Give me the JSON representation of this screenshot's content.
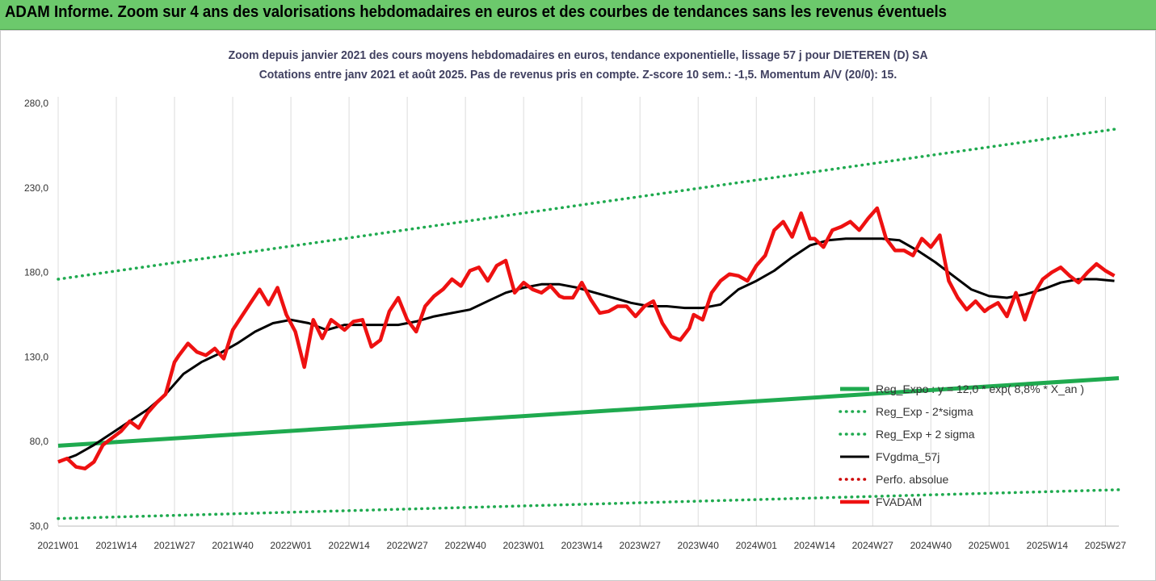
{
  "header": {
    "banner_title": "ADAM Informe. Zoom sur 4 ans des valorisations hebdomadaires en euros et des courbes de tendances sans les revenus éventuels"
  },
  "chart_data": {
    "type": "line",
    "title": "Zoom depuis janvier 2021 des cours moyens hebdomadaires en euros, tendance exponentielle, lissage 57 j pour DIETEREN (D) SA",
    "subtitle": "Cotations entre janv 2021 et août 2025.  Pas de revenus pris en compte. Z-score 10 sem.: -1,5. Momentum A/V (20/0): 15.",
    "x_ticks": [
      "2021W01",
      "2021W14",
      "2021W27",
      "2021W40",
      "2022W01",
      "2022W14",
      "2022W27",
      "2022W40",
      "2023W01",
      "2023W14",
      "2023W27",
      "2023W40",
      "2024W01",
      "2024W14",
      "2024W27",
      "2024W40",
      "2025W01",
      "2025W14",
      "2025W27"
    ],
    "x_tick_weeks": [
      0,
      13,
      26,
      39,
      52,
      65,
      78,
      91,
      104,
      117,
      130,
      143,
      156,
      169,
      182,
      195,
      208,
      221,
      234
    ],
    "y_ticks": [
      "30,0",
      "80,0",
      "130,0",
      "180,0",
      "230,0",
      "280,0"
    ],
    "ylim": [
      30,
      280
    ],
    "xlim_weeks": [
      0,
      237
    ],
    "grid": "vertical",
    "legend_position": "bottom-right",
    "series": [
      {
        "name": "Reg_Expo : y = 12,0 * exp( 8,8% * X_an )",
        "style": "solid",
        "color": "#1faa4f",
        "x": [
          0,
          237
        ],
        "y": [
          77.5,
          117.5
        ]
      },
      {
        "name": "Reg_Exp - 2*sigma",
        "style": "dotted",
        "color": "#1faa4f",
        "x": [
          0,
          237
        ],
        "y": [
          34.5,
          51.5
        ]
      },
      {
        "name": "Reg_Exp + 2 sigma",
        "style": "dotted",
        "color": "#1faa4f",
        "x": [
          0,
          237
        ],
        "y": [
          176.0,
          265.0
        ]
      },
      {
        "name": "FVgdma_57j",
        "style": "solid",
        "color": "#000000",
        "x": [
          0,
          4,
          8,
          12,
          16,
          20,
          24,
          28,
          32,
          36,
          40,
          44,
          48,
          52,
          56,
          60,
          64,
          68,
          72,
          76,
          80,
          84,
          88,
          92,
          96,
          100,
          104,
          108,
          112,
          116,
          120,
          124,
          128,
          132,
          136,
          140,
          144,
          148,
          152,
          156,
          160,
          164,
          168,
          172,
          176,
          180,
          184,
          188,
          192,
          196,
          200,
          204,
          208,
          212,
          216,
          220,
          224,
          228,
          232,
          236
        ],
        "y": [
          68,
          72,
          78,
          85,
          92,
          99,
          108,
          120,
          127,
          132,
          138,
          145,
          150,
          152,
          150,
          146,
          149,
          149,
          149,
          149,
          151,
          154,
          156,
          158,
          163,
          168,
          171,
          173,
          173,
          171,
          168,
          165,
          162,
          160,
          160,
          159,
          159,
          161,
          170,
          175,
          181,
          189,
          196,
          199,
          200,
          200,
          200,
          199,
          193,
          186,
          178,
          170,
          166,
          165,
          167,
          170,
          174,
          176,
          176,
          175
        ]
      },
      {
        "name": "Perfo. absolue",
        "style": "dotted",
        "color": "#cc0000",
        "x": [],
        "y": []
      },
      {
        "name": "FVADAM",
        "style": "solid",
        "color": "#ee1111",
        "x": [
          0,
          2,
          4,
          6,
          8,
          10,
          12,
          14,
          16,
          18,
          20,
          22,
          24,
          26,
          27,
          29,
          31,
          33,
          35,
          37,
          39,
          41,
          43,
          45,
          47,
          49,
          51,
          53,
          55,
          57,
          59,
          61,
          62,
          64,
          66,
          68,
          70,
          72,
          74,
          76,
          78,
          80,
          82,
          84,
          86,
          88,
          90,
          92,
          94,
          96,
          98,
          100,
          102,
          104,
          106,
          108,
          110,
          112,
          113,
          115,
          117,
          119,
          121,
          123,
          125,
          127,
          129,
          131,
          133,
          135,
          137,
          139,
          141,
          142,
          144,
          146,
          148,
          150,
          152,
          154,
          156,
          158,
          160,
          162,
          164,
          166,
          168,
          169,
          171,
          173,
          175,
          177,
          179,
          181,
          183,
          185,
          187,
          189,
          191,
          193,
          195,
          197,
          199,
          201,
          203,
          205,
          207,
          208,
          210,
          212,
          214,
          216,
          218,
          220,
          222,
          224,
          226,
          228,
          230,
          232,
          234,
          236
        ],
        "y": [
          68,
          70,
          65,
          64,
          68,
          78,
          82,
          86,
          92,
          88,
          97,
          103,
          108,
          127,
          131,
          138,
          133,
          131,
          135,
          129,
          146,
          154,
          162,
          170,
          161,
          171,
          155,
          145,
          124,
          152,
          141,
          152,
          150,
          146,
          151,
          152,
          136,
          140,
          157,
          165,
          152,
          145,
          160,
          166,
          170,
          176,
          172,
          181,
          183,
          175,
          184,
          187,
          168,
          174,
          170,
          168,
          172,
          166,
          165,
          165,
          174,
          164,
          156,
          157,
          160,
          160,
          154,
          160,
          163,
          150,
          142,
          140,
          147,
          155,
          152,
          168,
          175,
          179,
          178,
          175,
          184,
          190,
          205,
          210,
          201,
          215,
          200,
          200,
          195,
          205,
          207,
          210,
          205,
          212,
          218,
          200,
          193,
          193,
          190,
          200,
          195,
          202,
          175,
          165,
          158,
          163,
          157,
          159,
          162,
          154,
          168,
          152,
          167,
          176,
          180,
          183,
          178,
          174,
          180,
          185,
          181,
          178
        ]
      }
    ]
  }
}
